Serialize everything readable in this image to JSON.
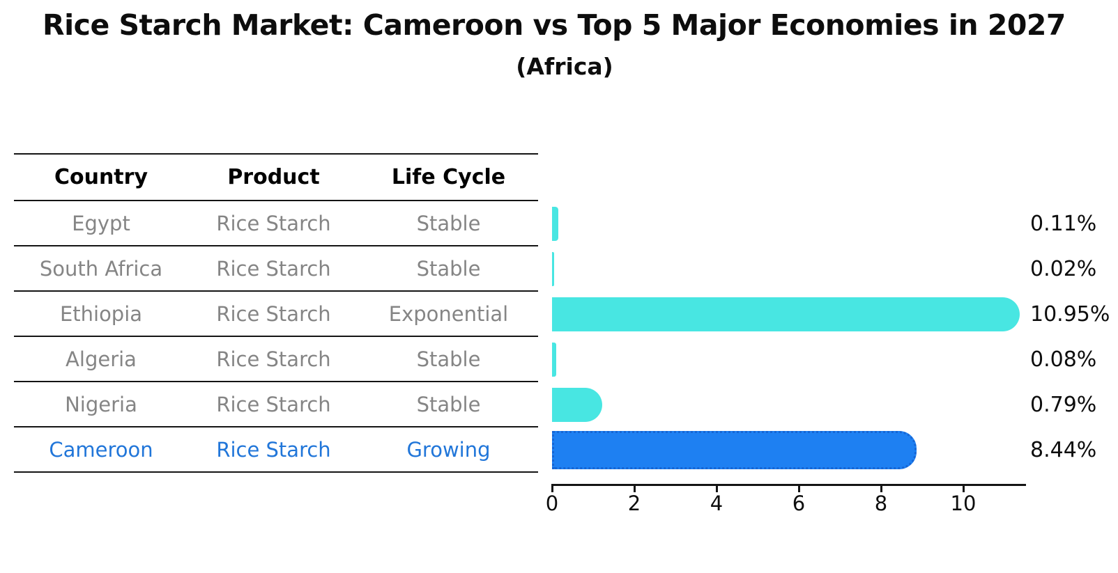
{
  "title": "Rice Starch Market: Cameroon vs Top 5 Major Economies in 2027",
  "subtitle": "(Africa)",
  "table": {
    "columns": [
      "Country",
      "Product",
      "Life Cycle"
    ],
    "rows": [
      {
        "country": "Egypt",
        "product": "Rice Starch",
        "life_cycle": "Stable",
        "value": 0.11,
        "value_label": "0.11%",
        "highlight": false
      },
      {
        "country": "South Africa",
        "product": "Rice Starch",
        "life_cycle": "Stable",
        "value": 0.02,
        "value_label": "0.02%",
        "highlight": false
      },
      {
        "country": "Ethiopia",
        "product": "Rice Starch",
        "life_cycle": "Exponential",
        "value": 10.95,
        "value_label": "10.95%",
        "highlight": false
      },
      {
        "country": "Algeria",
        "product": "Rice Starch",
        "life_cycle": "Stable",
        "value": 0.08,
        "value_label": "0.08%",
        "highlight": false
      },
      {
        "country": "Nigeria",
        "product": "Rice Starch",
        "life_cycle": "Stable",
        "value": 0.79,
        "value_label": "0.79%",
        "highlight": false
      },
      {
        "country": "Cameroon",
        "product": "Rice Starch",
        "life_cycle": "Growing",
        "value": 8.44,
        "value_label": "8.44%",
        "highlight": true
      }
    ]
  },
  "axis": {
    "ticks": [
      "0",
      "2",
      "4",
      "6",
      "8",
      "10"
    ],
    "tick_values": [
      0,
      2,
      4,
      6,
      8,
      10
    ]
  },
  "colors": {
    "bar": "#48e6e2",
    "highlight_bar": "#1e80f2",
    "highlight_border": "#1565d4",
    "highlight_text": "#2176d9",
    "row_text": "#858585",
    "text": "#0d0d0d"
  },
  "chart_data": {
    "type": "bar",
    "orientation": "horizontal",
    "title": "Rice Starch Market: Cameroon vs Top 5 Major Economies in 2027",
    "subtitle": "(Africa)",
    "categories": [
      "Egypt",
      "South Africa",
      "Ethiopia",
      "Algeria",
      "Nigeria",
      "Cameroon"
    ],
    "values": [
      0.11,
      0.02,
      10.95,
      0.08,
      0.79,
      8.44
    ],
    "value_labels": [
      "0.11%",
      "0.02%",
      "10.95%",
      "0.08%",
      "0.79%",
      "8.44%"
    ],
    "series_meta": {
      "product": [
        "Rice Starch",
        "Rice Starch",
        "Rice Starch",
        "Rice Starch",
        "Rice Starch",
        "Rice Starch"
      ],
      "life_cycle": [
        "Stable",
        "Stable",
        "Exponential",
        "Stable",
        "Stable",
        "Growing"
      ]
    },
    "xlabel": "",
    "ylabel": "",
    "xlim": [
      0,
      11.5
    ],
    "xticks": [
      0,
      2,
      4,
      6,
      8,
      10
    ],
    "grid": false,
    "legend": false,
    "highlight_category": "Cameroon"
  }
}
